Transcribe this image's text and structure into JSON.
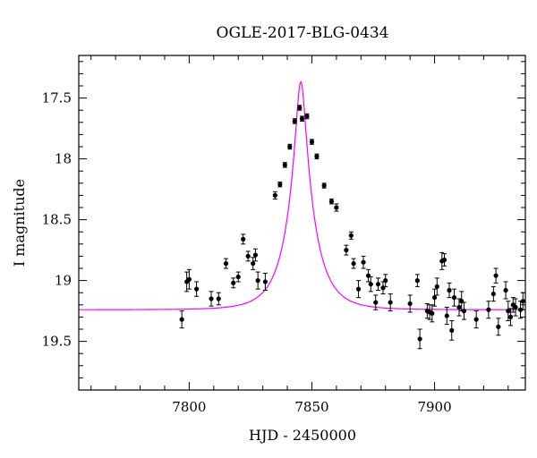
{
  "chart_data": {
    "type": "scatter",
    "title": "OGLE-2017-BLG-0434",
    "xlabel": "HJD - 2450000",
    "ylabel": "I magnitude",
    "xlim": [
      7755,
      7937
    ],
    "ylim": [
      19.9,
      17.15
    ],
    "y_inverted": true,
    "x_ticks": [
      {
        "value": 7800,
        "label": "7800"
      },
      {
        "value": 7850,
        "label": "7850"
      },
      {
        "value": 7900,
        "label": "7900"
      }
    ],
    "y_ticks": [
      {
        "value": 17.5,
        "label": "17.5"
      },
      {
        "value": 18.0,
        "label": "18"
      },
      {
        "value": 18.5,
        "label": "18.5"
      },
      {
        "value": 19.0,
        "label": "19"
      },
      {
        "value": 19.5,
        "label": "19.5"
      }
    ],
    "x_minor_step": 10,
    "y_minor_step": 0.1,
    "grid": false,
    "colors": {
      "points": "#000000",
      "model": "#ff00ff",
      "axes": "#000000"
    },
    "series": [
      {
        "kind": "points_with_errorbars",
        "x": [
          7797,
          7799,
          7800,
          7803,
          7809,
          7812,
          7815,
          7818,
          7820,
          7822,
          7824,
          7826,
          7827,
          7828,
          7831,
          7835,
          7837,
          7839,
          7841,
          7843,
          7845,
          7846,
          7848,
          7850,
          7852,
          7855,
          7858,
          7860,
          7864,
          7866,
          7867,
          7869,
          7871,
          7873,
          7874,
          7876,
          7877,
          7879,
          7880,
          7882,
          7890,
          7893,
          7894,
          7897,
          7898,
          7899,
          7900,
          7901,
          7903,
          7904,
          7905,
          7906,
          7907,
          7908,
          7910,
          7911,
          7912,
          7917,
          7922,
          7924,
          7925,
          7926,
          7929,
          7930,
          7931,
          7932,
          7933,
          7935,
          7936
        ],
        "y": [
          19.32,
          19.01,
          18.99,
          19.07,
          19.15,
          19.15,
          18.86,
          19.02,
          18.97,
          18.66,
          18.8,
          18.86,
          18.79,
          19.0,
          19.01,
          18.3,
          18.21,
          18.05,
          17.9,
          17.69,
          17.58,
          17.67,
          17.65,
          17.86,
          17.98,
          18.22,
          18.35,
          18.4,
          18.75,
          18.63,
          18.86,
          19.07,
          18.85,
          18.96,
          19.03,
          19.18,
          19.03,
          19.06,
          19.0,
          19.18,
          19.19,
          19.0,
          19.48,
          19.25,
          19.26,
          19.27,
          19.14,
          19.05,
          18.84,
          18.83,
          19.29,
          19.08,
          19.41,
          19.14,
          19.22,
          19.17,
          19.25,
          19.32,
          19.24,
          19.11,
          18.96,
          19.38,
          19.08,
          19.25,
          19.3,
          19.2,
          19.22,
          19.24,
          19.17
        ],
        "err": [
          0.07,
          0.08,
          0.08,
          0.06,
          0.06,
          0.05,
          0.04,
          0.04,
          0.04,
          0.04,
          0.04,
          0.05,
          0.05,
          0.07,
          0.07,
          0.03,
          0.02,
          0.02,
          0.02,
          0.02,
          0.02,
          0.02,
          0.02,
          0.02,
          0.02,
          0.02,
          0.02,
          0.03,
          0.04,
          0.03,
          0.04,
          0.07,
          0.05,
          0.05,
          0.06,
          0.06,
          0.05,
          0.05,
          0.05,
          0.07,
          0.07,
          0.05,
          0.08,
          0.06,
          0.06,
          0.07,
          0.07,
          0.07,
          0.07,
          0.05,
          0.07,
          0.06,
          0.08,
          0.07,
          0.07,
          0.08,
          0.07,
          0.07,
          0.07,
          0.06,
          0.06,
          0.07,
          0.07,
          0.08,
          0.07,
          0.06,
          0.07,
          0.07,
          0.07
        ]
      },
      {
        "kind": "model_curve",
        "t0": 7845.5,
        "tE": 10.6,
        "u0": 0.18,
        "I_base": 19.24
      }
    ]
  }
}
